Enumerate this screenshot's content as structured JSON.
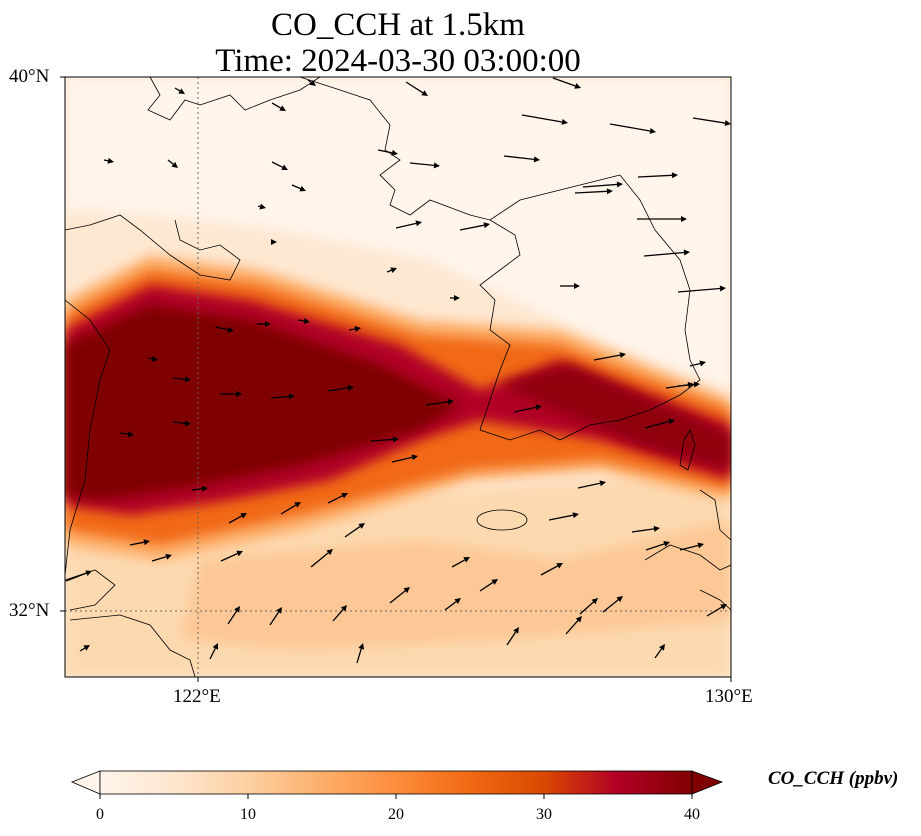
{
  "title": {
    "line1": "CO_CCH at 1.5km",
    "line2": "Time: 2024-03-30 03:00:00"
  },
  "map": {
    "extent": {
      "lon": [
        120,
        130
      ],
      "lat": [
        31,
        40
      ]
    },
    "gridlines": {
      "lon": [
        122,
        130
      ],
      "lat": [
        32,
        40
      ],
      "style": "dotted"
    },
    "lat_ticks": [
      {
        "value": 40,
        "label": "40°N"
      },
      {
        "value": 32,
        "label": "32°N"
      }
    ],
    "lon_ticks": [
      {
        "value": 122,
        "label": "122°E"
      },
      {
        "value": 130,
        "label": "130°E"
      }
    ],
    "field": "CO_CCH",
    "band": {
      "description": "high-concentration plume oriented WNW-ESE across Yellow Sea",
      "peak_ppbv": 40
    }
  },
  "colorbar": {
    "label": "CO_CCH (ppbv)",
    "min": 0,
    "max": 40,
    "ticks": [
      {
        "value": 0,
        "label": "0"
      },
      {
        "value": 10,
        "label": "10"
      },
      {
        "value": 20,
        "label": "20"
      },
      {
        "value": 30,
        "label": "30"
      },
      {
        "value": 40,
        "label": "40"
      }
    ],
    "colormap": [
      "#fff5eb",
      "#fee6ce",
      "#fdd0a2",
      "#fdae6b",
      "#fd8d3c",
      "#f16913",
      "#d94801",
      "#b10026",
      "#7f0000"
    ],
    "extend": "both"
  },
  "wind_vectors": "arrows indicating predominantly westerly to south-westerly flow"
}
